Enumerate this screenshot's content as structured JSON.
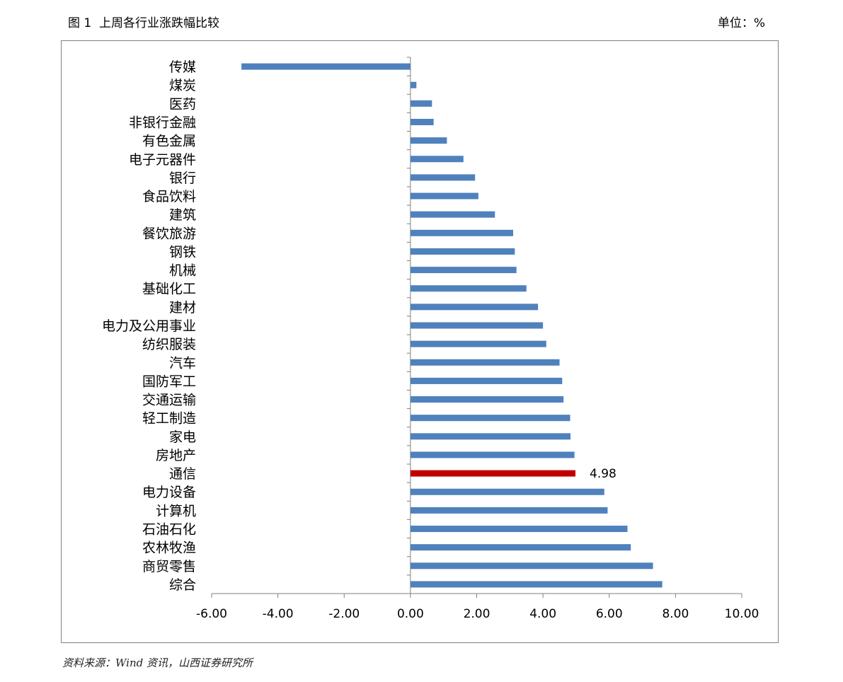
{
  "figure": {
    "title": "图 1  上周各行业涨跌幅比较",
    "unit": "单位：%",
    "source": "资料来源：Wind 资讯，山西证券研究所"
  },
  "colors": {
    "bar": "#4f81bd",
    "highlight": "#c00000",
    "axis": "#7f7f7f",
    "frame": "#7f7f7f"
  },
  "chart_data": {
    "type": "bar",
    "orientation": "horizontal",
    "title": "",
    "xlabel": "",
    "ylabel": "",
    "xlim": [
      -6,
      10
    ],
    "xticks": [
      "-6.00",
      "-4.00",
      "-2.00",
      "0.00",
      "2.00",
      "4.00",
      "6.00",
      "8.00",
      "10.00"
    ],
    "grid": false,
    "legend": "none",
    "categories": [
      "传媒",
      "煤炭",
      "医药",
      "非银行金融",
      "有色金属",
      "电子元器件",
      "银行",
      "食品饮料",
      "建筑",
      "餐饮旅游",
      "钢铁",
      "机械",
      "基础化工",
      "建材",
      "电力及公用事业",
      "纺织服装",
      "汽车",
      "国防军工",
      "交通运输",
      "轻工制造",
      "家电",
      "房地产",
      "通信",
      "电力设备",
      "计算机",
      "石油石化",
      "农林牧渔",
      "商贸零售",
      "综合"
    ],
    "values": [
      -5.1,
      0.18,
      0.65,
      0.7,
      1.1,
      1.6,
      1.95,
      2.05,
      2.55,
      3.1,
      3.15,
      3.2,
      3.5,
      3.85,
      4.0,
      4.1,
      4.5,
      4.58,
      4.62,
      4.82,
      4.83,
      4.95,
      4.98,
      5.85,
      5.95,
      6.55,
      6.65,
      7.32,
      7.6
    ],
    "highlight": {
      "category": "通信",
      "label": "4.98"
    }
  }
}
